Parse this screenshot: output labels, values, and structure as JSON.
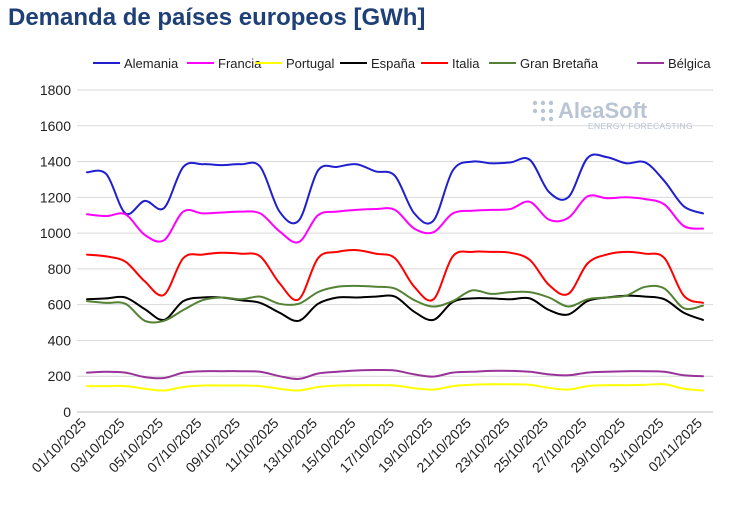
{
  "title": "Demanda de países europeos [GWh]",
  "logo": {
    "name": "AleaSoft",
    "tagline": "ENERGY FORECASTING"
  },
  "chart_data": {
    "type": "line",
    "title": "Demanda de países europeos [GWh]",
    "xlabel": "",
    "ylabel": "",
    "ylim": [
      0,
      1800
    ],
    "yticks": [
      0,
      200,
      400,
      600,
      800,
      1000,
      1200,
      1400,
      1600,
      1800
    ],
    "grid": true,
    "legend": "top",
    "x": [
      "01/10/2025",
      "02/10/2025",
      "03/10/2025",
      "04/10/2025",
      "05/10/2025",
      "06/10/2025",
      "07/10/2025",
      "08/10/2025",
      "09/10/2025",
      "10/10/2025",
      "11/10/2025",
      "12/10/2025",
      "13/10/2025",
      "14/10/2025",
      "15/10/2025",
      "16/10/2025",
      "17/10/2025",
      "18/10/2025",
      "19/10/2025",
      "20/10/2025",
      "21/10/2025",
      "22/10/2025",
      "23/10/2025",
      "24/10/2025",
      "25/10/2025",
      "26/10/2025",
      "27/10/2025",
      "28/10/2025",
      "29/10/2025",
      "30/10/2025",
      "31/10/2025",
      "01/11/2025",
      "02/11/2025"
    ],
    "xtick_labels": [
      "01/10/2025",
      "03/10/2025",
      "05/10/2025",
      "07/10/2025",
      "09/10/2025",
      "11/10/2025",
      "13/10/2025",
      "15/10/2025",
      "17/10/2025",
      "19/10/2025",
      "21/10/2025",
      "23/10/2025",
      "25/10/2025",
      "27/10/2025",
      "29/10/2025",
      "31/10/2025",
      "02/11/2025"
    ],
    "series": [
      {
        "name": "Alemania",
        "color": "#1f1fd0",
        "values": [
          1340,
          1330,
          1110,
          1180,
          1140,
          1370,
          1385,
          1380,
          1385,
          1370,
          1120,
          1070,
          1350,
          1370,
          1385,
          1345,
          1320,
          1110,
          1070,
          1350,
          1400,
          1390,
          1395,
          1410,
          1230,
          1200,
          1420,
          1425,
          1390,
          1395,
          1290,
          1150,
          1110
        ]
      },
      {
        "name": "Francia",
        "color": "#ff00ff",
        "values": [
          1105,
          1095,
          1105,
          990,
          960,
          1120,
          1110,
          1115,
          1120,
          1110,
          1010,
          950,
          1100,
          1120,
          1130,
          1135,
          1130,
          1025,
          1005,
          1110,
          1125,
          1130,
          1135,
          1175,
          1075,
          1085,
          1205,
          1195,
          1200,
          1190,
          1160,
          1040,
          1025
        ]
      },
      {
        "name": "Portugal",
        "color": "#ffff00",
        "values": [
          145,
          145,
          145,
          130,
          120,
          140,
          148,
          148,
          148,
          145,
          130,
          120,
          140,
          148,
          150,
          150,
          148,
          133,
          125,
          145,
          152,
          155,
          155,
          152,
          135,
          125,
          145,
          150,
          150,
          152,
          155,
          130,
          120
        ]
      },
      {
        "name": "España",
        "color": "#000000",
        "values": [
          630,
          635,
          640,
          575,
          515,
          620,
          640,
          640,
          625,
          610,
          555,
          510,
          605,
          640,
          640,
          645,
          645,
          560,
          515,
          615,
          635,
          635,
          630,
          635,
          570,
          545,
          620,
          640,
          650,
          645,
          630,
          555,
          515
        ]
      },
      {
        "name": "Italia",
        "color": "#ff0000",
        "values": [
          880,
          870,
          840,
          730,
          655,
          860,
          880,
          890,
          885,
          870,
          720,
          630,
          860,
          895,
          905,
          885,
          860,
          700,
          630,
          870,
          895,
          895,
          890,
          850,
          710,
          660,
          830,
          880,
          895,
          885,
          860,
          650,
          610
        ]
      },
      {
        "name": "Gran Bretaña",
        "color": "#548235",
        "values": [
          620,
          610,
          605,
          510,
          510,
          570,
          625,
          640,
          630,
          645,
          605,
          605,
          670,
          700,
          705,
          700,
          690,
          625,
          590,
          620,
          680,
          660,
          670,
          670,
          640,
          590,
          630,
          640,
          650,
          700,
          690,
          580,
          595
        ]
      },
      {
        "name": "Bélgica",
        "color": "#993399",
        "values": [
          220,
          225,
          220,
          195,
          190,
          220,
          228,
          228,
          228,
          225,
          200,
          185,
          215,
          225,
          232,
          235,
          232,
          210,
          198,
          220,
          225,
          230,
          230,
          225,
          210,
          205,
          220,
          225,
          228,
          228,
          225,
          205,
          200
        ]
      }
    ]
  }
}
